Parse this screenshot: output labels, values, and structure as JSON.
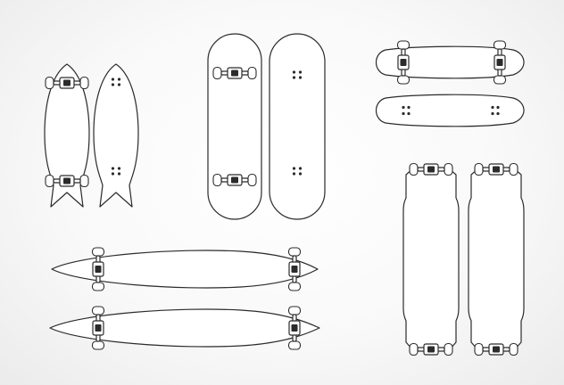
{
  "illustration": {
    "background_color": "#f6f6f6",
    "line_color": "#2b2b2b",
    "boards": [
      {
        "name": "fishtail-cruiser",
        "views": [
          "bottom-with-trucks",
          "top-deck"
        ]
      },
      {
        "name": "classic-skateboard",
        "views": [
          "bottom-with-trucks",
          "top-deck"
        ]
      },
      {
        "name": "penny-cruiser",
        "views": [
          "bottom-with-trucks",
          "top-deck"
        ]
      },
      {
        "name": "drop-through-longboard",
        "views": [
          "bottom-with-trucks",
          "top-deck"
        ]
      },
      {
        "name": "pintail-longboard",
        "views": [
          "bottom-with-trucks",
          "top-deck"
        ]
      }
    ]
  }
}
